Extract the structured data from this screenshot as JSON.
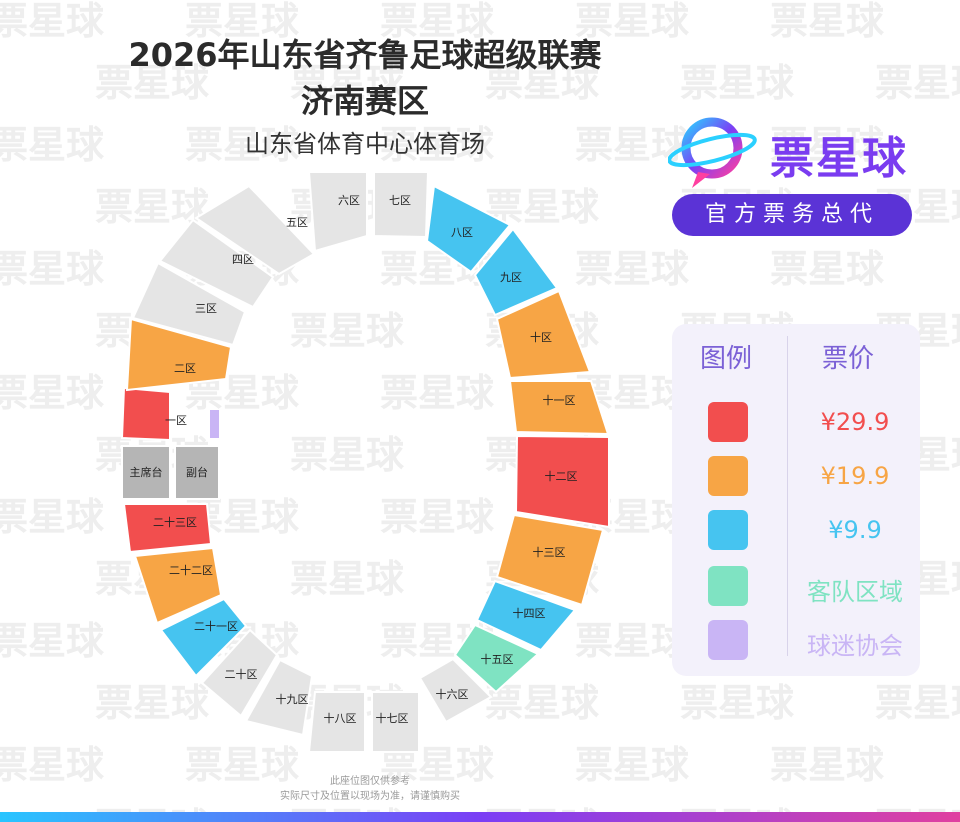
{
  "title": {
    "line1": "2026年山东省齐鲁足球超级联赛",
    "line2": "济南赛区",
    "venue": "山东省体育中心体育场"
  },
  "brand": {
    "name": "票星球",
    "tag": "官方票务总代",
    "watermark": "票星球"
  },
  "legend": {
    "header_left": "图例",
    "header_right": "票价",
    "items": [
      {
        "label": "¥29.9",
        "color": "#f24e4e"
      },
      {
        "label": "¥19.9",
        "color": "#f7a545"
      },
      {
        "label": "¥9.9",
        "color": "#46c4f0"
      },
      {
        "label": "客队区域",
        "color": "#7fe3c2"
      },
      {
        "label": "球迷协会",
        "color": "#c9b5f5"
      }
    ]
  },
  "colors": {
    "gray": "#e5e5e5",
    "dark_gray": "#b5b5b5",
    "red": "#f24e4e",
    "orange": "#f7a545",
    "blue": "#46c4f0",
    "mint": "#7fe3c2",
    "lavender": "#c9b5f5"
  },
  "sections": [
    {
      "label": "一区",
      "category": "red"
    },
    {
      "label": "二区",
      "category": "orange"
    },
    {
      "label": "三区",
      "category": "gray"
    },
    {
      "label": "四区",
      "category": "gray"
    },
    {
      "label": "五区",
      "category": "gray"
    },
    {
      "label": "六区",
      "category": "gray"
    },
    {
      "label": "七区",
      "category": "gray"
    },
    {
      "label": "八区",
      "category": "blue"
    },
    {
      "label": "九区",
      "category": "blue"
    },
    {
      "label": "十区",
      "category": "orange"
    },
    {
      "label": "十一区",
      "category": "orange"
    },
    {
      "label": "十二区",
      "category": "red"
    },
    {
      "label": "十三区",
      "category": "orange"
    },
    {
      "label": "十四区",
      "category": "blue"
    },
    {
      "label": "十五区",
      "category": "mint"
    },
    {
      "label": "十六区",
      "category": "gray"
    },
    {
      "label": "十七区",
      "category": "gray"
    },
    {
      "label": "十八区",
      "category": "gray"
    },
    {
      "label": "十九区",
      "category": "gray"
    },
    {
      "label": "二十区",
      "category": "gray"
    },
    {
      "label": "二十一区",
      "category": "blue"
    },
    {
      "label": "二十二区",
      "category": "orange"
    },
    {
      "label": "二十三区",
      "category": "red"
    },
    {
      "label": "主席台",
      "category": "dark_gray"
    },
    {
      "label": "副台",
      "category": "dark_gray"
    }
  ],
  "footnote": {
    "line1": "此座位图仅供参考",
    "line2": "实际尺寸及位置以现场为准，请谨慎购买"
  }
}
